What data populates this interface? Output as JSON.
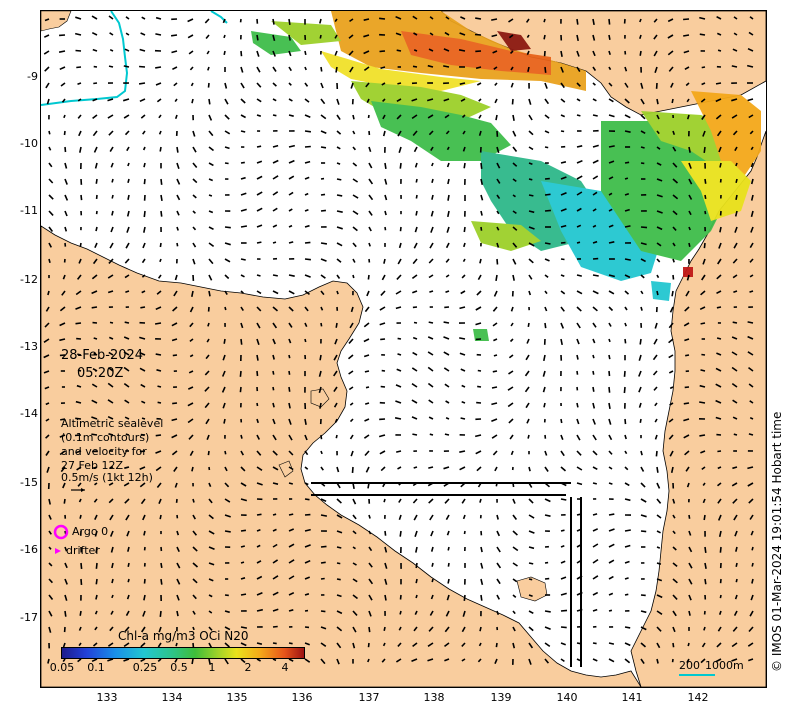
{
  "map": {
    "date": "28-Feb-2024",
    "time": "05:20Z",
    "altimetry_lines": [
      "Altimetric sealevel",
      "(0.1m contours)",
      "and velocity for",
      "27 Feb 12Z",
      "0.5m/s (1kt 12h)"
    ],
    "legend": {
      "argo": "Argo 0",
      "drifter": "drifter"
    },
    "colorbar": {
      "title": "Chl-a mg/m3 OCi N20",
      "ticks": [
        "0.05",
        "0.1",
        "0.25",
        "0.5",
        "1",
        "2",
        "4"
      ]
    },
    "scale": {
      "km": "200",
      "depth": "1000m"
    },
    "credit": "© IMOS 01-Mar-2024 19:01:54 Hobart time",
    "lat_ticks": [
      "-9",
      "-10",
      "-11",
      "-12",
      "-13",
      "-14",
      "-15",
      "-16",
      "-17"
    ],
    "lon_ticks": [
      "133",
      "134",
      "135",
      "136",
      "137",
      "138",
      "139",
      "140",
      "141",
      "142"
    ],
    "colors": {
      "land": "#f9cd9e",
      "sea": "#ffffff",
      "argo": "#ff00ff",
      "drifter": "#ff00ff",
      "contour": "#00b0c8"
    }
  }
}
